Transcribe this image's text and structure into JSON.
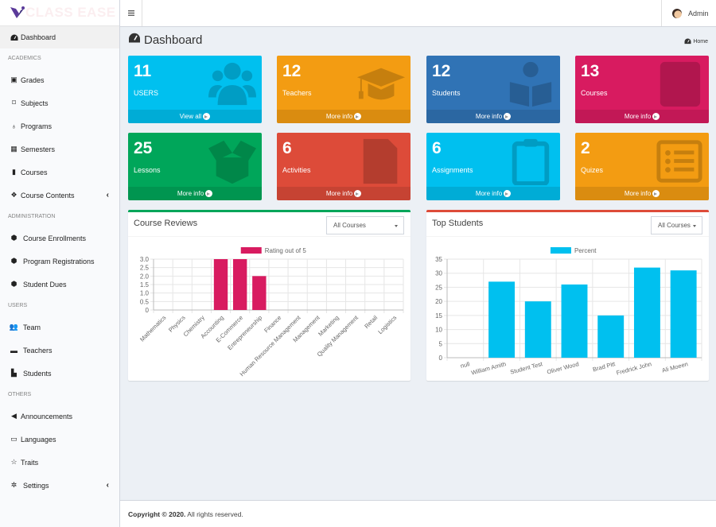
{
  "app": {
    "logo_text": "CLASS EASE"
  },
  "topbar": {
    "user_name": "Admin"
  },
  "sidebar": {
    "dashboard": {
      "label": "Dashboard",
      "icon": "tachometer-icon"
    },
    "sections": [
      {
        "header": "ACADEMICS",
        "items": [
          {
            "label": "Grades",
            "icon": "grades-icon"
          },
          {
            "label": "Subjects",
            "icon": "bookmark-icon"
          },
          {
            "label": "Programs",
            "icon": "award-icon"
          },
          {
            "label": "Semesters",
            "icon": "calendar-icon"
          },
          {
            "label": "Courses",
            "icon": "book-icon"
          },
          {
            "label": "Course Contents",
            "icon": "cubes-icon",
            "expandable": true
          }
        ]
      },
      {
        "header": "ADMINISTRATION",
        "items": [
          {
            "label": "Course Enrollments",
            "icon": "cube-icon"
          },
          {
            "label": "Program Registrations",
            "icon": "cube-icon"
          },
          {
            "label": "Student Dues",
            "icon": "cube-icon"
          }
        ]
      },
      {
        "header": "USERS",
        "items": [
          {
            "label": "Team",
            "icon": "users-icon"
          },
          {
            "label": "Teachers",
            "icon": "chalkboard-teacher-icon"
          },
          {
            "label": "Students",
            "icon": "students-icon"
          }
        ]
      },
      {
        "header": "OTHERS",
        "items": [
          {
            "label": "Announcements",
            "icon": "bullhorn-icon"
          },
          {
            "label": "Languages",
            "icon": "language-icon"
          },
          {
            "label": "Traits",
            "icon": "star-half-icon"
          },
          {
            "label": "Settings",
            "icon": "cogs-icon",
            "expandable": true
          }
        ]
      }
    ]
  },
  "header": {
    "title": "Dashboard",
    "breadcrumb": "Home"
  },
  "stat_boxes": [
    {
      "value": "11",
      "label": "USERS",
      "link": "View all",
      "color": "#00c0ef",
      "icon": "users-icon"
    },
    {
      "value": "12",
      "label": "Teachers",
      "link": "More info",
      "color": "#f39c12",
      "icon": "graduation-cap-icon"
    },
    {
      "value": "12",
      "label": "Students",
      "link": "More info",
      "color": "#3073b5",
      "icon": "book-reader-icon"
    },
    {
      "value": "13",
      "label": "Courses",
      "link": "More info",
      "color": "#d81b60",
      "icon": "book-icon"
    },
    {
      "value": "25",
      "label": "Lessons",
      "link": "More info",
      "color": "#00a65a",
      "icon": "box-open-icon"
    },
    {
      "value": "6",
      "label": "Activities",
      "link": "More info",
      "color": "#dd4b39",
      "icon": "file-signature-icon"
    },
    {
      "value": "6",
      "label": "Assignments",
      "link": "More info",
      "color": "#00c0ef",
      "icon": "clipboard-icon"
    },
    {
      "value": "2",
      "label": "Quizes",
      "link": "More info",
      "color": "#f39c12",
      "icon": "list-alt-icon"
    }
  ],
  "panels": {
    "reviews": {
      "title": "Course Reviews",
      "filter": "All Courses",
      "accent": "#00a65a"
    },
    "students": {
      "title": "Top Students",
      "filter": "All Courses",
      "accent": "#dd4b39"
    }
  },
  "chart_data": [
    {
      "type": "bar",
      "title": "Course Reviews",
      "categories": [
        "Mathematics",
        "Physics",
        "Chemistry",
        "Accounting",
        "E-Commerce",
        "Entrepreneurship",
        "Finance",
        "Human Resource Management",
        "Management",
        "Marketing",
        "Quality Management",
        "Retail",
        "Logistics"
      ],
      "series": [
        {
          "name": "Rating out of 5",
          "values": [
            0,
            0,
            0,
            3,
            3,
            2,
            0,
            0,
            0,
            0,
            0,
            0,
            0
          ],
          "color": "#d81b60"
        }
      ],
      "ylim": [
        0,
        3
      ],
      "yticks": [
        "0",
        "0.5",
        "1.0",
        "1.5",
        "2.0",
        "2.5",
        "3.0"
      ],
      "legend": "top-center",
      "grid": true
    },
    {
      "type": "bar",
      "title": "Top Students",
      "categories": [
        "null",
        "William Amith",
        "Student Test",
        "Oliver Wood",
        "Brad Pitt",
        "Fredrick John",
        "Ali Moeen"
      ],
      "series": [
        {
          "name": "Percent",
          "values": [
            0,
            27,
            20,
            26,
            15,
            32,
            31
          ],
          "color": "#00c0ef"
        }
      ],
      "ylim": [
        0,
        35
      ],
      "yticks": [
        "0",
        "5",
        "10",
        "15",
        "20",
        "25",
        "30",
        "35"
      ],
      "legend": "top-center",
      "grid": true
    }
  ],
  "footer": {
    "copyright": "Copyright © 2020.",
    "rights": " All rights reserved."
  }
}
